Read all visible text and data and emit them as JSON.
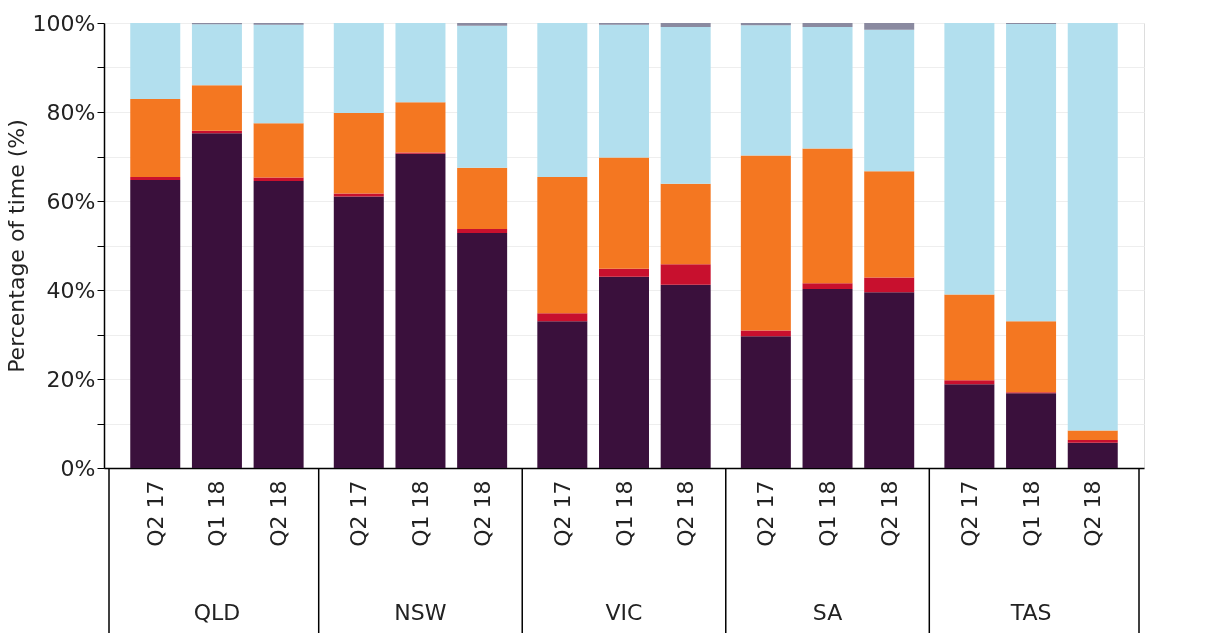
{
  "chart_data": {
    "type": "bar",
    "stacked": true,
    "ylabel": "Percentage of time (%)",
    "categories": [
      "Q2 17",
      "Q1 18",
      "Q2 18",
      "Q2 17",
      "Q1 18",
      "Q2 18",
      "Q2 17",
      "Q1 18",
      "Q2 18",
      "Q2 17",
      "Q1 18",
      "Q2 18",
      "Q2 17",
      "Q1 18",
      "Q2 18"
    ],
    "annotations": [
      "QLD",
      "NSW",
      "VIC",
      "SA",
      "TAS"
    ],
    "series": [
      {
        "color": "#3a103c",
        "values": [
          64.7,
          75.2,
          64.5,
          61.0,
          70.6,
          52.8,
          33.0,
          43.0,
          41.2,
          29.6,
          40.2,
          39.5,
          18.8,
          16.8,
          5.7
        ]
      },
      {
        "color": "#c8102e",
        "values": [
          0.7,
          0.6,
          0.8,
          0.7,
          0.3,
          0.9,
          1.8,
          1.8,
          4.6,
          1.3,
          1.3,
          3.3,
          0.9,
          0.2,
          0.6
        ]
      },
      {
        "color": "#f47721",
        "values": [
          17.5,
          10.2,
          12.2,
          18.1,
          11.3,
          13.8,
          30.6,
          25.0,
          18.1,
          39.3,
          30.3,
          23.9,
          19.3,
          16.0,
          2.1
        ]
      },
      {
        "color": "#b2dfee",
        "values": [
          17.1,
          13.7,
          22.1,
          20.2,
          17.8,
          31.9,
          34.6,
          29.8,
          35.2,
          29.3,
          27.3,
          31.8,
          61.0,
          66.8,
          91.6
        ]
      },
      {
        "color": "#8a8aa0",
        "values": [
          0,
          0.3,
          0.4,
          0,
          0,
          0.6,
          0,
          0.4,
          0.9,
          0.5,
          0.9,
          1.5,
          0,
          0.2,
          0
        ]
      }
    ],
    "ylim": [
      0,
      100
    ],
    "yticks": [
      {
        "value": 0,
        "label": "0%"
      },
      {
        "value": 10,
        "label": null
      },
      {
        "value": 20,
        "label": "20%"
      },
      {
        "value": 30,
        "label": null
      },
      {
        "value": 40,
        "label": "40%"
      },
      {
        "value": 50,
        "label": null
      },
      {
        "value": 60,
        "label": "60%"
      },
      {
        "value": 70,
        "label": null
      },
      {
        "value": 80,
        "label": "80%"
      },
      {
        "value": 90,
        "label": null
      },
      {
        "value": 100,
        "label": "100%"
      }
    ],
    "grid": "y"
  }
}
